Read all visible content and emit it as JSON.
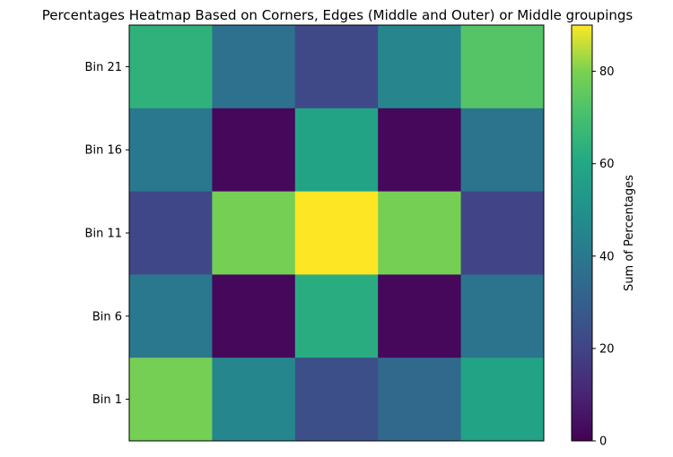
{
  "chart_data": {
    "type": "heatmap",
    "title": "Percentages Heatmap Based on Corners, Edges (Middle and Outer) or Middle groupings",
    "xlabel": "",
    "ylabel": "",
    "y_categories": [
      "Bin 21",
      "Bin 16",
      "Bin 11",
      "Bin 6",
      "Bin 1"
    ],
    "x_categories": [
      "",
      "",
      "",
      "",
      ""
    ],
    "values": [
      [
        64,
        37,
        22,
        45,
        73
      ],
      [
        40,
        2,
        58,
        2,
        38
      ],
      [
        21,
        79,
        90,
        79,
        20
      ],
      [
        40,
        2,
        62,
        2,
        38
      ],
      [
        79,
        46,
        24,
        34,
        58
      ]
    ],
    "colorbar": {
      "label": "Sum of Percentages",
      "range": [
        0,
        90
      ],
      "ticks": [
        "0",
        "20",
        "40",
        "60",
        "80"
      ],
      "colormap": "viridis"
    },
    "grid": false,
    "x_ticks_visible": false
  }
}
